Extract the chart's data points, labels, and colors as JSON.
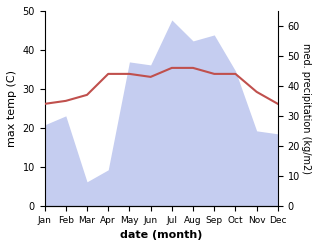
{
  "months": [
    "Jan",
    "Feb",
    "Mar",
    "Apr",
    "May",
    "Jun",
    "Jul",
    "Aug",
    "Sep",
    "Oct",
    "Nov",
    "Dec"
  ],
  "temperature": [
    34,
    35,
    37,
    44,
    44,
    43,
    46,
    46,
    44,
    44,
    38,
    34
  ],
  "precipitation": [
    27,
    30,
    8,
    12,
    48,
    47,
    62,
    55,
    57,
    45,
    25,
    24
  ],
  "temp_color": "#c0504d",
  "precip_fill_color": "#c5cdf0",
  "xlabel": "date (month)",
  "ylabel_left": "max temp (C)",
  "ylabel_right": "med. precipitation (kg/m2)",
  "ylim_left": [
    0,
    50
  ],
  "ylim_right": [
    0,
    65
  ],
  "yticks_left": [
    0,
    10,
    20,
    30,
    40,
    50
  ],
  "yticks_right": [
    0,
    10,
    20,
    30,
    40,
    50,
    60
  ],
  "background_color": "#ffffff"
}
